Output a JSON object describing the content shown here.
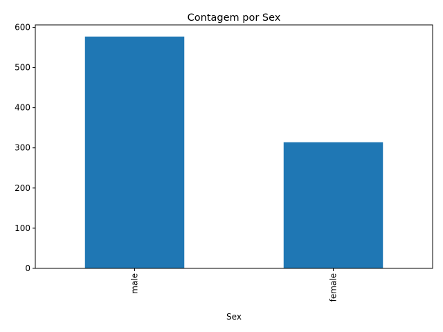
{
  "chart_data": {
    "type": "bar",
    "title": "Contagem por Sex",
    "xlabel": "Sex",
    "ylabel": "",
    "categories": [
      "male",
      "female"
    ],
    "values": [
      577,
      314
    ],
    "ylim": [
      0,
      606
    ],
    "yticks": [
      0,
      100,
      200,
      300,
      400,
      500,
      600
    ],
    "bar_color": "#1f77b4",
    "grid": false,
    "legend": "none",
    "xtick_rotation": "vertical"
  }
}
